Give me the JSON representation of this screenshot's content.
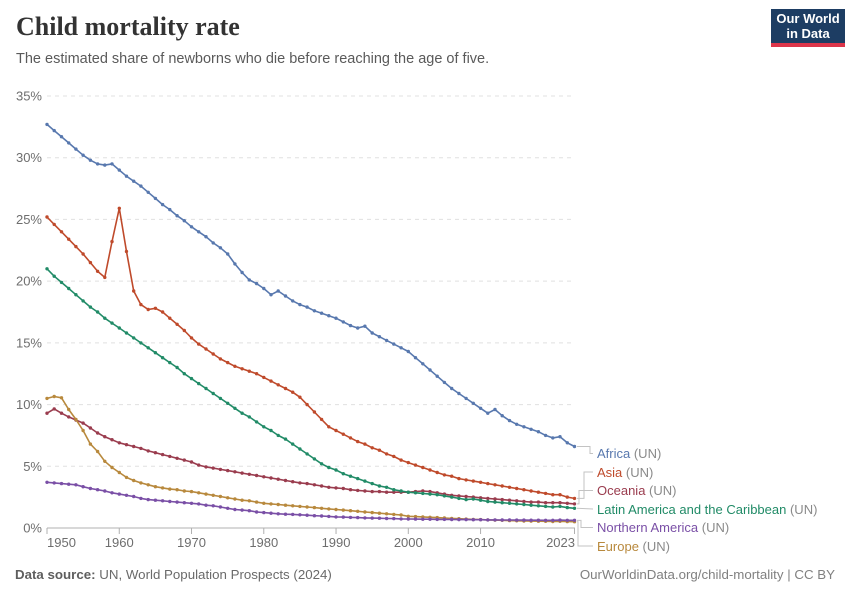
{
  "header": {
    "title": "Child mortality rate",
    "subtitle": "The estimated share of newborns who die before reaching the age of five."
  },
  "logo": {
    "line1": "Our World",
    "line2": "in Data",
    "bg_color": "#1d3d63",
    "bar_color": "#dc354a"
  },
  "footer": {
    "source_label": "Data source:",
    "source_value": "UN, World Population Prospects (2024)",
    "link": "OurWorldinData.org/child-mortality | CC BY"
  },
  "chart_data": {
    "type": "line",
    "title": "Child mortality rate",
    "ylabel_suffix": "%",
    "ylim": [
      0,
      35
    ],
    "yticks": [
      0,
      5,
      10,
      15,
      20,
      25,
      30,
      35
    ],
    "xticks": [
      1950,
      1960,
      1970,
      1980,
      1990,
      2000,
      2010,
      2023
    ],
    "x_start": 1950,
    "x_step": 1,
    "x_end": 2023,
    "grid": "horizontal-dashed",
    "legend_position": "right",
    "legend_qualifier": "(UN)",
    "colors": {
      "grid": "#e0e0e0",
      "axis": "#b0b0b0",
      "leader": "#c3c3c3"
    },
    "series": [
      {
        "label": "Africa",
        "color": "#5878ae",
        "values": [
          32.7,
          32.2,
          31.7,
          31.2,
          30.7,
          30.2,
          29.8,
          29.5,
          29.4,
          29.5,
          29.0,
          28.5,
          28.1,
          27.7,
          27.2,
          26.7,
          26.2,
          25.8,
          25.3,
          24.9,
          24.4,
          24.0,
          23.6,
          23.1,
          22.7,
          22.2,
          21.4,
          20.7,
          20.1,
          19.8,
          19.4,
          18.9,
          19.2,
          18.8,
          18.4,
          18.1,
          17.9,
          17.6,
          17.4,
          17.2,
          17.0,
          16.7,
          16.4,
          16.2,
          16.35,
          15.8,
          15.5,
          15.2,
          14.9,
          14.6,
          14.3,
          13.8,
          13.3,
          12.8,
          12.3,
          11.8,
          11.3,
          10.9,
          10.5,
          10.1,
          9.7,
          9.3,
          9.6,
          9.1,
          8.7,
          8.4,
          8.2,
          8.0,
          7.8,
          7.5,
          7.3,
          7.4,
          6.9,
          6.6
        ]
      },
      {
        "label": "Asia",
        "color": "#bf4a2b",
        "values": [
          25.2,
          24.6,
          24.0,
          23.4,
          22.8,
          22.2,
          21.5,
          20.8,
          20.3,
          23.2,
          25.9,
          22.4,
          19.2,
          18.1,
          17.7,
          17.8,
          17.5,
          17.0,
          16.5,
          16.0,
          15.4,
          14.9,
          14.5,
          14.1,
          13.7,
          13.4,
          13.1,
          12.9,
          12.7,
          12.5,
          12.2,
          11.9,
          11.6,
          11.3,
          11.0,
          10.6,
          10.0,
          9.4,
          8.8,
          8.2,
          7.9,
          7.6,
          7.3,
          7.0,
          6.8,
          6.5,
          6.3,
          6.0,
          5.8,
          5.5,
          5.3,
          5.1,
          4.9,
          4.7,
          4.5,
          4.3,
          4.2,
          4.0,
          3.9,
          3.8,
          3.7,
          3.6,
          3.5,
          3.4,
          3.3,
          3.2,
          3.1,
          3.0,
          2.9,
          2.8,
          2.7,
          2.7,
          2.5,
          2.4
        ]
      },
      {
        "label": "Oceania",
        "color": "#9a3c4e",
        "values": [
          9.3,
          9.65,
          9.3,
          9.0,
          8.75,
          8.5,
          8.1,
          7.7,
          7.4,
          7.15,
          6.9,
          6.75,
          6.6,
          6.45,
          6.25,
          6.1,
          5.95,
          5.8,
          5.65,
          5.5,
          5.35,
          5.1,
          4.95,
          4.85,
          4.75,
          4.65,
          4.55,
          4.45,
          4.35,
          4.25,
          4.15,
          4.05,
          3.95,
          3.85,
          3.75,
          3.65,
          3.6,
          3.5,
          3.4,
          3.3,
          3.25,
          3.2,
          3.1,
          3.05,
          3.0,
          2.95,
          2.95,
          2.9,
          2.9,
          2.9,
          2.9,
          2.95,
          3.0,
          2.95,
          2.85,
          2.75,
          2.65,
          2.6,
          2.55,
          2.5,
          2.45,
          2.4,
          2.35,
          2.3,
          2.25,
          2.2,
          2.15,
          2.1,
          2.1,
          2.05,
          2.05,
          2.05,
          2.0,
          1.95
        ]
      },
      {
        "label": "Latin America and the Caribbean",
        "color": "#218b67",
        "values": [
          21.0,
          20.4,
          19.9,
          19.4,
          18.9,
          18.4,
          17.9,
          17.5,
          17.0,
          16.6,
          16.2,
          15.8,
          15.4,
          15.0,
          14.6,
          14.2,
          13.8,
          13.4,
          13.0,
          12.5,
          12.1,
          11.7,
          11.3,
          10.9,
          10.5,
          10.1,
          9.7,
          9.3,
          9.0,
          8.6,
          8.2,
          7.9,
          7.5,
          7.2,
          6.8,
          6.4,
          6.0,
          5.6,
          5.2,
          4.9,
          4.7,
          4.4,
          4.2,
          4.0,
          3.8,
          3.6,
          3.4,
          3.3,
          3.1,
          3.0,
          2.9,
          2.85,
          2.8,
          2.75,
          2.7,
          2.6,
          2.5,
          2.4,
          2.3,
          2.35,
          2.25,
          2.15,
          2.1,
          2.05,
          2.0,
          1.95,
          1.9,
          1.85,
          1.8,
          1.75,
          1.7,
          1.75,
          1.65,
          1.6
        ]
      },
      {
        "label": "Northern America",
        "color": "#7a4fa6",
        "values": [
          3.7,
          3.65,
          3.6,
          3.55,
          3.5,
          3.35,
          3.2,
          3.1,
          3.0,
          2.85,
          2.75,
          2.65,
          2.55,
          2.4,
          2.3,
          2.25,
          2.2,
          2.15,
          2.1,
          2.05,
          2.0,
          1.95,
          1.85,
          1.8,
          1.7,
          1.6,
          1.5,
          1.45,
          1.4,
          1.3,
          1.25,
          1.2,
          1.15,
          1.12,
          1.1,
          1.07,
          1.04,
          1.0,
          0.97,
          0.94,
          0.9,
          0.88,
          0.86,
          0.84,
          0.82,
          0.8,
          0.79,
          0.77,
          0.76,
          0.74,
          0.73,
          0.72,
          0.71,
          0.71,
          0.7,
          0.7,
          0.69,
          0.68,
          0.68,
          0.67,
          0.67,
          0.66,
          0.66,
          0.65,
          0.65,
          0.64,
          0.64,
          0.63,
          0.63,
          0.62,
          0.62,
          0.64,
          0.62,
          0.62
        ]
      },
      {
        "label": "Europe",
        "color": "#b8893d",
        "values": [
          10.5,
          10.65,
          10.55,
          9.6,
          8.8,
          7.9,
          6.8,
          6.2,
          5.4,
          4.9,
          4.5,
          4.1,
          3.85,
          3.65,
          3.5,
          3.35,
          3.25,
          3.15,
          3.1,
          3.0,
          2.95,
          2.85,
          2.75,
          2.65,
          2.55,
          2.45,
          2.35,
          2.25,
          2.2,
          2.1,
          2.0,
          1.95,
          1.9,
          1.85,
          1.8,
          1.75,
          1.7,
          1.65,
          1.6,
          1.55,
          1.5,
          1.45,
          1.4,
          1.35,
          1.3,
          1.25,
          1.2,
          1.15,
          1.1,
          1.05,
          0.95,
          0.92,
          0.9,
          0.87,
          0.84,
          0.81,
          0.78,
          0.75,
          0.72,
          0.7,
          0.68,
          0.66,
          0.64,
          0.62,
          0.6,
          0.58,
          0.57,
          0.56,
          0.55,
          0.54,
          0.53,
          0.54,
          0.52,
          0.51
        ]
      }
    ]
  }
}
